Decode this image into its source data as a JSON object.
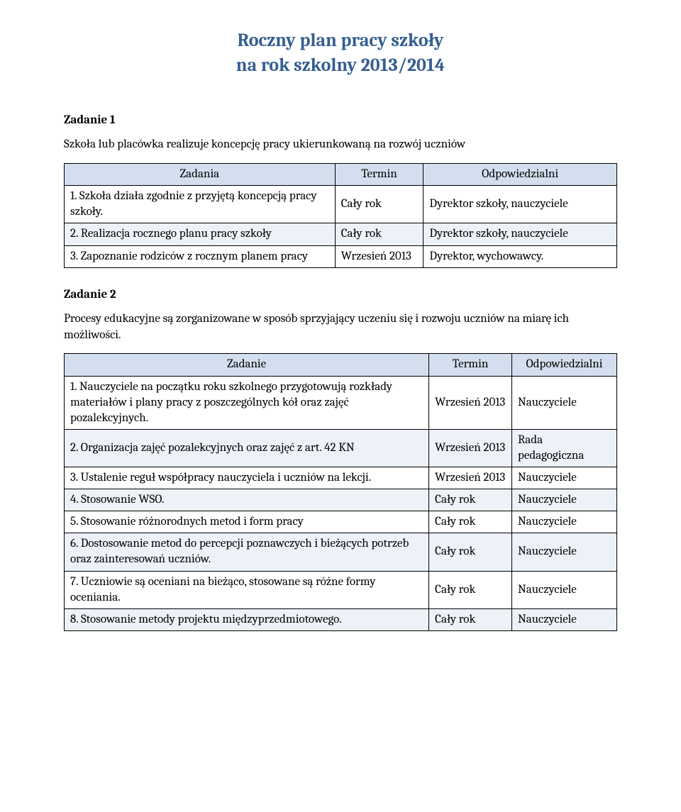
{
  "title": {
    "line1": "Roczny plan pracy szkoły",
    "line2": "na rok szkolny 2013/2014",
    "color": "#365f91"
  },
  "section1": {
    "heading": "Zadanie 1",
    "desc": "Szkoła lub placówka realizuje koncepcję pracy ukierunkowaną na rozwój uczniów",
    "table": {
      "type": "table",
      "header_bg": "#d3dfee",
      "alt_row_bg": "#edf2f8",
      "border_color": "#000000",
      "columns": [
        "Zadania",
        "Termin",
        "Odpowiedzialni"
      ],
      "rows": [
        [
          "1. Szkoła działa zgodnie z przyjętą koncepcją pracy szkoły.",
          "Cały rok",
          "Dyrektor szkoły, nauczyciele"
        ],
        [
          "2. Realizacja rocznego planu pracy szkoły",
          "Cały rok",
          "Dyrektor szkoły, nauczyciele"
        ],
        [
          "3. Zapoznanie rodziców z rocznym planem pracy",
          "Wrzesień 2013",
          "Dyrektor, wychowawcy."
        ]
      ]
    }
  },
  "section2": {
    "heading": "Zadanie 2",
    "desc": "Procesy edukacyjne są zorganizowane w sposób sprzyjający uczeniu się i rozwoju uczniów na miarę ich możliwości.",
    "table": {
      "type": "table",
      "header_bg": "#d3dfee",
      "alt_row_bg": "#edf2f8",
      "border_color": "#000000",
      "columns": [
        "Zadanie",
        "Termin",
        "Odpowiedzialni"
      ],
      "rows": [
        [
          "1. Nauczyciele na początku roku szkolnego przygotowują rozkłady materiałów i plany pracy z poszczególnych kół oraz zajęć pozalekcyjnych.",
          "Wrzesień 2013",
          "Nauczyciele"
        ],
        [
          "2. Organizacja zajęć pozalekcyjnych oraz zajęć z art. 42 KN",
          "Wrzesień 2013",
          "Rada pedagogiczna"
        ],
        [
          "3. Ustalenie reguł współpracy nauczyciela i uczniów na lekcji.",
          "Wrzesień 2013",
          "Nauczyciele"
        ],
        [
          "4. Stosowanie WSO.",
          "Cały rok",
          "Nauczyciele"
        ],
        [
          "5. Stosowanie różnorodnych metod i form pracy",
          "Cały rok",
          "Nauczyciele"
        ],
        [
          "6. Dostosowanie metod do percepcji poznawczych i bieżących potrzeb oraz zainteresowań uczniów.",
          "Cały rok",
          "Nauczyciele"
        ],
        [
          "7. Uczniowie są oceniani na bieżąco, stosowane są różne formy oceniania.",
          "Cały rok",
          "Nauczyciele"
        ],
        [
          "8. Stosowanie metody projektu międzyprzedmiotowego.",
          "Cały rok",
          "Nauczyciele"
        ]
      ]
    }
  }
}
